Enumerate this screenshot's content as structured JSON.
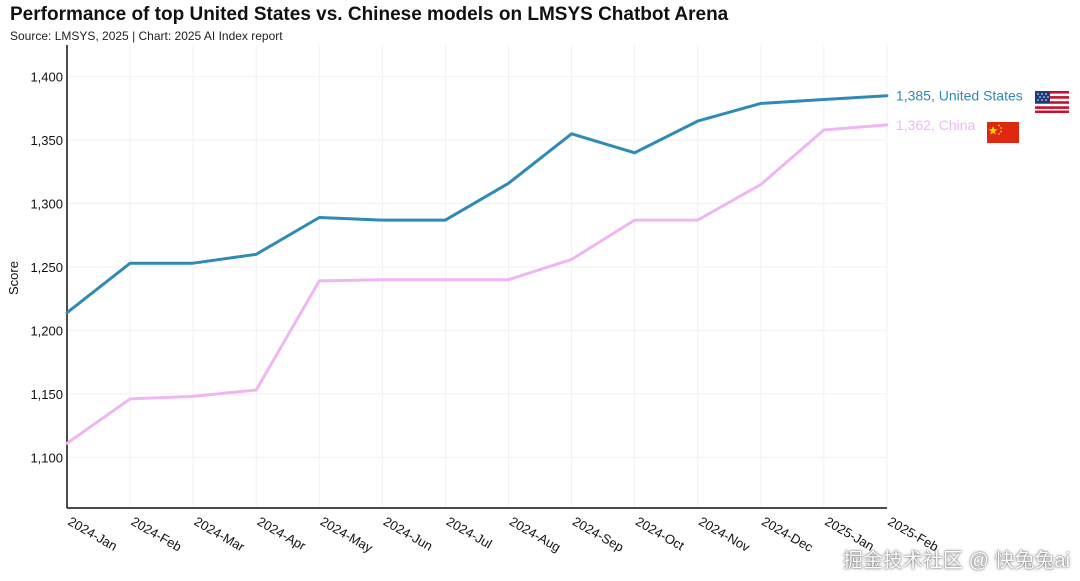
{
  "header": {
    "title": "Performance of top United States vs. Chinese models on LMSYS Chatbot Arena",
    "subtitle": "Source: LMSYS, 2025 | Chart: 2025 AI Index report"
  },
  "watermark": "掘金技术社区 @ 快兔兔ai",
  "colors": {
    "us": "#2e8ab6",
    "china": "#f0b6f4",
    "axis": "#111111",
    "grid": "#f1f1f1"
  },
  "icons": {
    "us": "us-flag-icon",
    "china": "china-flag-icon"
  },
  "chart_data": {
    "type": "line",
    "title": "Performance of top United States vs. Chinese models on LMSYS Chatbot Arena",
    "ylabel": "Score",
    "xlabel": "",
    "ylim": [
      1060,
      1425
    ],
    "yticks": [
      1100,
      1150,
      1200,
      1250,
      1300,
      1350,
      1400
    ],
    "ytick_labels": [
      "1,100",
      "1,150",
      "1,200",
      "1,250",
      "1,300",
      "1,350",
      "1,400"
    ],
    "categories": [
      "2024-Jan",
      "2024-Feb",
      "2024-Mar",
      "2024-Apr",
      "2024-May",
      "2024-Jun",
      "2024-Jul",
      "2024-Aug",
      "2024-Sep",
      "2024-Oct",
      "2024-Nov",
      "2024-Dec",
      "2025-Jan",
      "2025-Feb"
    ],
    "grid": true,
    "legend": "end-of-line labels",
    "series": [
      {
        "name": "United States",
        "end_label": "1,385, United States",
        "values": [
          1214,
          1253,
          1253,
          1260,
          1289,
          1287,
          1287,
          1316,
          1355,
          1340,
          1365,
          1379,
          1382,
          1385
        ]
      },
      {
        "name": "China",
        "end_label": "1,362, China",
        "values": [
          1111,
          1146,
          1148,
          1153,
          1239,
          1240,
          1240,
          1240,
          1256,
          1287,
          1287,
          1315,
          1358,
          1362
        ]
      }
    ]
  }
}
